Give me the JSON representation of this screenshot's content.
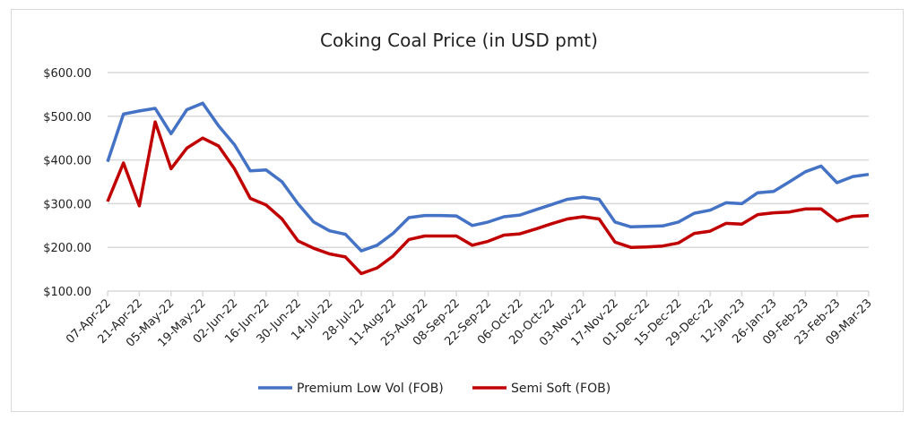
{
  "chart_data": {
    "type": "line",
    "title": "Coking Coal Price (in USD pmt)",
    "xlabel": "",
    "ylabel": "",
    "ylim": [
      100,
      600
    ],
    "yticks": [
      "$100.00",
      "$200.00",
      "$300.00",
      "$400.00",
      "$500.00",
      "$600.00"
    ],
    "ytick_values": [
      100,
      200,
      300,
      400,
      500,
      600
    ],
    "grid": true,
    "legend_position": "bottom",
    "x_tick_labels": [
      "07-Apr-22",
      "21-Apr-22",
      "05-May-22",
      "19-May-22",
      "02-Jun-22",
      "16-Jun-22",
      "30-Jun-22",
      "14-Jul-22",
      "28-Jul-22",
      "11-Aug-22",
      "25-Aug-22",
      "08-Sep-22",
      "22-Sep-22",
      "06-Oct-22",
      "20-Oct-22",
      "03-Nov-22",
      "17-Nov-22",
      "01-Dec-22",
      "15-Dec-22",
      "29-Dec-22",
      "12-Jan-23",
      "26-Jan-23",
      "09-Feb-23",
      "23-Feb-23",
      "09-Mar-23"
    ],
    "series": [
      {
        "name": "Premium Low Vol (FOB)",
        "color": "#4472c4",
        "values": [
          396,
          505,
          512,
          518,
          460,
          515,
          530,
          478,
          435,
          375,
          377,
          350,
          300,
          258,
          238,
          230,
          192,
          205,
          232,
          268,
          273,
          273,
          272,
          250,
          258,
          270,
          274,
          286,
          298,
          310,
          315,
          310,
          258,
          247,
          248,
          249,
          258,
          278,
          285,
          302,
          300,
          325,
          328,
          350,
          373,
          386,
          348,
          362,
          367
        ]
      },
      {
        "name": "Semi Soft (FOB)",
        "color": "#c00000",
        "values": [
          305,
          393,
          295,
          487,
          380,
          427,
          450,
          432,
          380,
          312,
          297,
          265,
          215,
          198,
          185,
          178,
          140,
          153,
          180,
          218,
          226,
          226,
          226,
          205,
          214,
          228,
          231,
          242,
          254,
          265,
          270,
          265,
          212,
          200,
          201,
          203,
          210,
          232,
          237,
          255,
          253,
          275,
          279,
          281,
          288,
          288,
          260,
          271,
          273
        ]
      }
    ]
  }
}
